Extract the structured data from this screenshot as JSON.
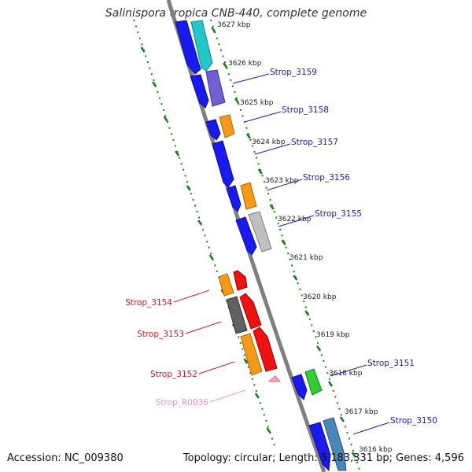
{
  "title": "Salinispora tropica CNB-440, complete genome",
  "footer": {
    "accession": "Accession: NC_009380",
    "summary": "Topology: circular; Length: 5,183,331 bp; Genes: 4,596"
  },
  "colors": {
    "backbone": "#7f7f7f",
    "tick": "#1a7d1a",
    "label_blue": "#1a1ad6",
    "label_red": "#d91a1a",
    "label_pink": "#f090c0"
  },
  "scale": [
    {
      "label": "3627 kbp"
    },
    {
      "label": "3626 kbp"
    },
    {
      "label": "3625 kbp"
    },
    {
      "label": "3624 kbp"
    },
    {
      "label": "3623 kbp"
    },
    {
      "label": "3622 kbp"
    },
    {
      "label": "3621 kbp"
    },
    {
      "label": "3620 kbp"
    },
    {
      "label": "3619 kbp"
    },
    {
      "label": "3618 kbp"
    },
    {
      "label": "3617 kbp"
    },
    {
      "label": "3616 kbp"
    }
  ],
  "gene_labels": [
    {
      "text": "Strop_3159",
      "color": "#1a1ad6"
    },
    {
      "text": "Strop_3158",
      "color": "#1a1ad6"
    },
    {
      "text": "Strop_3157",
      "color": "#1a1ad6"
    },
    {
      "text": "Strop_3156",
      "color": "#1a1ad6"
    },
    {
      "text": "Strop_3155",
      "color": "#1a1ad6"
    },
    {
      "text": "Strop_3154",
      "color": "#d91a1a"
    },
    {
      "text": "Strop_3153",
      "color": "#d91a1a"
    },
    {
      "text": "Strop_3152",
      "color": "#d91a1a"
    },
    {
      "text": "Strop_R0036",
      "color": "#f090c0"
    },
    {
      "text": "Strop_3151",
      "color": "#1a1ad6"
    },
    {
      "text": "Strop_3150",
      "color": "#1a1ad6"
    }
  ]
}
